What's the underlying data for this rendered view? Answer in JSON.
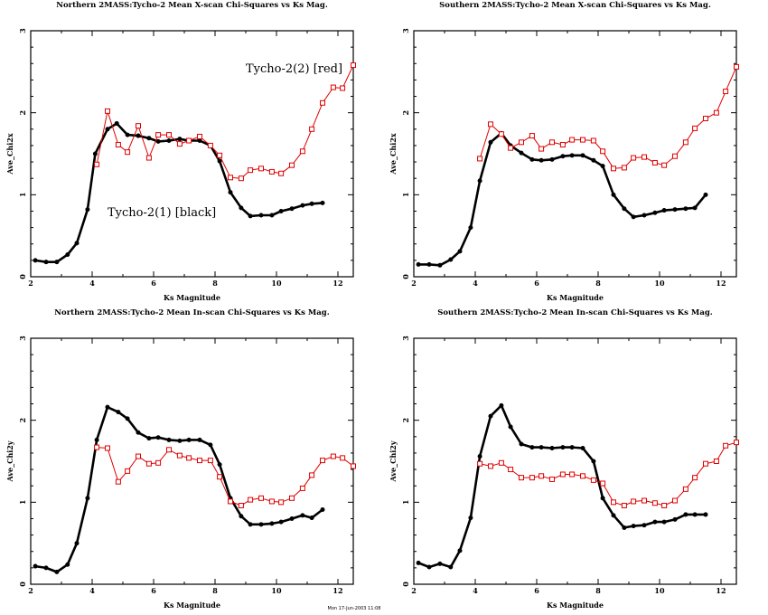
{
  "footer": "Mon 17-Jun-2003 11:08",
  "colors": {
    "series1": "#000000",
    "series2": "#e00000"
  },
  "chart_data": [
    {
      "type": "line",
      "title": "Northern 2MASS:Tycho-2 Mean X-scan Chi-Squares vs Ks Mag.",
      "xlabel": "Ks Magnitude",
      "ylabel": "Ave_Chi2x",
      "xlim": [
        2,
        12.5
      ],
      "ylim": [
        0,
        3
      ],
      "xticks": [
        "2",
        "4",
        "6",
        "8",
        "10",
        "12"
      ],
      "yticks": [
        "0",
        "1",
        "2",
        "3"
      ],
      "annotations": [
        "Tycho-2(2) [red]",
        "Tycho-2(1) [black]"
      ],
      "series": [
        {
          "name": "Tycho-2(1) [black]",
          "color": "#000000",
          "x": [
            2.15,
            2.5,
            2.85,
            3.2,
            3.5,
            3.85,
            4.1,
            4.5,
            4.8,
            5.15,
            5.5,
            5.85,
            6.15,
            6.5,
            6.85,
            7.15,
            7.5,
            7.85,
            8.15,
            8.5,
            8.85,
            9.15,
            9.5,
            9.85,
            10.15,
            10.5,
            10.85,
            11.15,
            11.5
          ],
          "y": [
            0.2,
            0.18,
            0.18,
            0.27,
            0.41,
            0.82,
            1.5,
            1.8,
            1.87,
            1.73,
            1.72,
            1.69,
            1.65,
            1.66,
            1.68,
            1.66,
            1.66,
            1.6,
            1.41,
            1.03,
            0.84,
            0.74,
            0.75,
            0.75,
            0.8,
            0.83,
            0.87,
            0.89,
            0.9
          ]
        },
        {
          "name": "Tycho-2(2) [red]",
          "color": "#e00000",
          "x": [
            4.15,
            4.5,
            4.85,
            5.15,
            5.5,
            5.85,
            6.15,
            6.5,
            6.85,
            7.15,
            7.5,
            7.85,
            8.15,
            8.5,
            8.85,
            9.15,
            9.5,
            9.85,
            10.15,
            10.5,
            10.85,
            11.15,
            11.5,
            11.85,
            12.15,
            12.5
          ],
          "y": [
            1.37,
            2.02,
            1.61,
            1.52,
            1.84,
            1.45,
            1.73,
            1.73,
            1.62,
            1.66,
            1.71,
            1.6,
            1.48,
            1.21,
            1.2,
            1.3,
            1.32,
            1.28,
            1.26,
            1.36,
            1.53,
            1.8,
            2.12,
            2.31,
            2.3,
            2.58
          ]
        }
      ]
    },
    {
      "type": "line",
      "title": "Southern 2MASS:Tycho-2 Mean X-scan Chi-Squares vs Ks Mag.",
      "xlabel": "Ks Magnitude",
      "ylabel": "Ave_Chi2x",
      "xlim": [
        2,
        12.5
      ],
      "ylim": [
        0,
        3
      ],
      "xticks": [
        "2",
        "4",
        "6",
        "8",
        "10",
        "12"
      ],
      "yticks": [
        "0",
        "1",
        "2",
        "3"
      ],
      "series": [
        {
          "name": "Tycho-2(1) [black]",
          "color": "#000000",
          "x": [
            2.15,
            2.5,
            2.85,
            3.2,
            3.5,
            3.85,
            4.15,
            4.5,
            4.85,
            5.15,
            5.5,
            5.85,
            6.15,
            6.5,
            6.85,
            7.15,
            7.5,
            7.85,
            8.15,
            8.5,
            8.85,
            9.15,
            9.5,
            9.85,
            10.15,
            10.5,
            10.85,
            11.15,
            11.5
          ],
          "y": [
            0.15,
            0.15,
            0.14,
            0.21,
            0.31,
            0.6,
            1.17,
            1.64,
            1.75,
            1.6,
            1.51,
            1.43,
            1.42,
            1.43,
            1.47,
            1.48,
            1.48,
            1.42,
            1.35,
            1.0,
            0.83,
            0.73,
            0.75,
            0.78,
            0.81,
            0.82,
            0.83,
            0.84,
            1.0
          ]
        },
        {
          "name": "Tycho-2(2) [red]",
          "color": "#e00000",
          "x": [
            4.15,
            4.5,
            4.85,
            5.15,
            5.5,
            5.85,
            6.15,
            6.5,
            6.85,
            7.15,
            7.5,
            7.85,
            8.15,
            8.5,
            8.85,
            9.15,
            9.5,
            9.85,
            10.15,
            10.5,
            10.85,
            11.15,
            11.5,
            11.85,
            12.15,
            12.5
          ],
          "y": [
            1.44,
            1.86,
            1.74,
            1.57,
            1.64,
            1.72,
            1.56,
            1.64,
            1.61,
            1.67,
            1.67,
            1.66,
            1.53,
            1.32,
            1.33,
            1.45,
            1.46,
            1.39,
            1.36,
            1.47,
            1.64,
            1.81,
            1.93,
            2.0,
            2.26,
            2.56
          ]
        }
      ]
    },
    {
      "type": "line",
      "title": "Northern 2MASS:Tycho-2 Mean In-scan Chi-Squares vs Ks Mag.",
      "xlabel": "Ks Magnitude",
      "ylabel": "Ave_Chi2y",
      "xlim": [
        2,
        12.5
      ],
      "ylim": [
        0,
        3
      ],
      "xticks": [
        "2",
        "4",
        "6",
        "8",
        "10",
        "12"
      ],
      "yticks": [
        "0",
        "1",
        "2",
        "3"
      ],
      "series": [
        {
          "name": "Tycho-2(1) [black]",
          "color": "#000000",
          "x": [
            2.15,
            2.5,
            2.85,
            3.2,
            3.5,
            3.85,
            4.15,
            4.5,
            4.85,
            5.15,
            5.5,
            5.85,
            6.15,
            6.5,
            6.85,
            7.15,
            7.5,
            7.85,
            8.15,
            8.5,
            8.85,
            9.15,
            9.5,
            9.85,
            10.15,
            10.5,
            10.85,
            11.15,
            11.5
          ],
          "y": [
            0.22,
            0.2,
            0.15,
            0.24,
            0.5,
            1.05,
            1.76,
            2.16,
            2.1,
            2.02,
            1.85,
            1.78,
            1.79,
            1.76,
            1.75,
            1.76,
            1.76,
            1.7,
            1.46,
            1.05,
            0.83,
            0.73,
            0.73,
            0.74,
            0.76,
            0.8,
            0.84,
            0.81,
            0.91
          ]
        },
        {
          "name": "Tycho-2(2) [red]",
          "color": "#e00000",
          "x": [
            4.15,
            4.5,
            4.85,
            5.15,
            5.5,
            5.85,
            6.15,
            6.5,
            6.85,
            7.15,
            7.5,
            7.85,
            8.15,
            8.5,
            8.85,
            9.15,
            9.5,
            9.85,
            10.15,
            10.5,
            10.85,
            11.15,
            11.5,
            11.85,
            12.15,
            12.5
          ],
          "y": [
            1.67,
            1.66,
            1.25,
            1.38,
            1.56,
            1.47,
            1.48,
            1.64,
            1.57,
            1.54,
            1.51,
            1.51,
            1.31,
            1.01,
            0.96,
            1.03,
            1.05,
            1.01,
            1.0,
            1.05,
            1.17,
            1.33,
            1.51,
            1.56,
            1.54,
            1.44
          ]
        }
      ]
    },
    {
      "type": "line",
      "title": "Southern 2MASS:Tycho-2 Mean In-scan Chi-Squares vs Ks Mag.",
      "xlabel": "Ks Magnitude",
      "ylabel": "Ave_Chi2y",
      "xlim": [
        2,
        12.5
      ],
      "ylim": [
        0,
        3
      ],
      "xticks": [
        "2",
        "4",
        "6",
        "8",
        "10",
        "12"
      ],
      "yticks": [
        "0",
        "1",
        "2",
        "3"
      ],
      "series": [
        {
          "name": "Tycho-2(1) [black]",
          "color": "#000000",
          "x": [
            2.15,
            2.5,
            2.85,
            3.2,
            3.5,
            3.85,
            4.15,
            4.5,
            4.85,
            5.15,
            5.5,
            5.85,
            6.15,
            6.5,
            6.85,
            7.15,
            7.5,
            7.85,
            8.15,
            8.5,
            8.85,
            9.15,
            9.5,
            9.85,
            10.15,
            10.5,
            10.85,
            11.15,
            11.5
          ],
          "y": [
            0.26,
            0.21,
            0.25,
            0.21,
            0.41,
            0.81,
            1.56,
            2.05,
            2.18,
            1.92,
            1.71,
            1.67,
            1.67,
            1.66,
            1.67,
            1.67,
            1.66,
            1.5,
            1.05,
            0.84,
            0.69,
            0.71,
            0.72,
            0.76,
            0.76,
            0.79,
            0.85,
            0.85,
            0.85
          ]
        },
        {
          "name": "Tycho-2(2) [red]",
          "color": "#e00000",
          "x": [
            4.15,
            4.5,
            4.85,
            5.15,
            5.5,
            5.85,
            6.15,
            6.5,
            6.85,
            7.15,
            7.5,
            7.85,
            8.15,
            8.5,
            8.85,
            9.15,
            9.5,
            9.85,
            10.15,
            10.5,
            10.85,
            11.15,
            11.5,
            11.85,
            12.15,
            12.5
          ],
          "y": [
            1.47,
            1.44,
            1.48,
            1.4,
            1.3,
            1.3,
            1.32,
            1.28,
            1.34,
            1.34,
            1.32,
            1.27,
            1.23,
            1.0,
            0.96,
            1.01,
            1.02,
            0.99,
            0.96,
            1.02,
            1.16,
            1.3,
            1.47,
            1.5,
            1.69,
            1.73
          ]
        }
      ]
    }
  ]
}
